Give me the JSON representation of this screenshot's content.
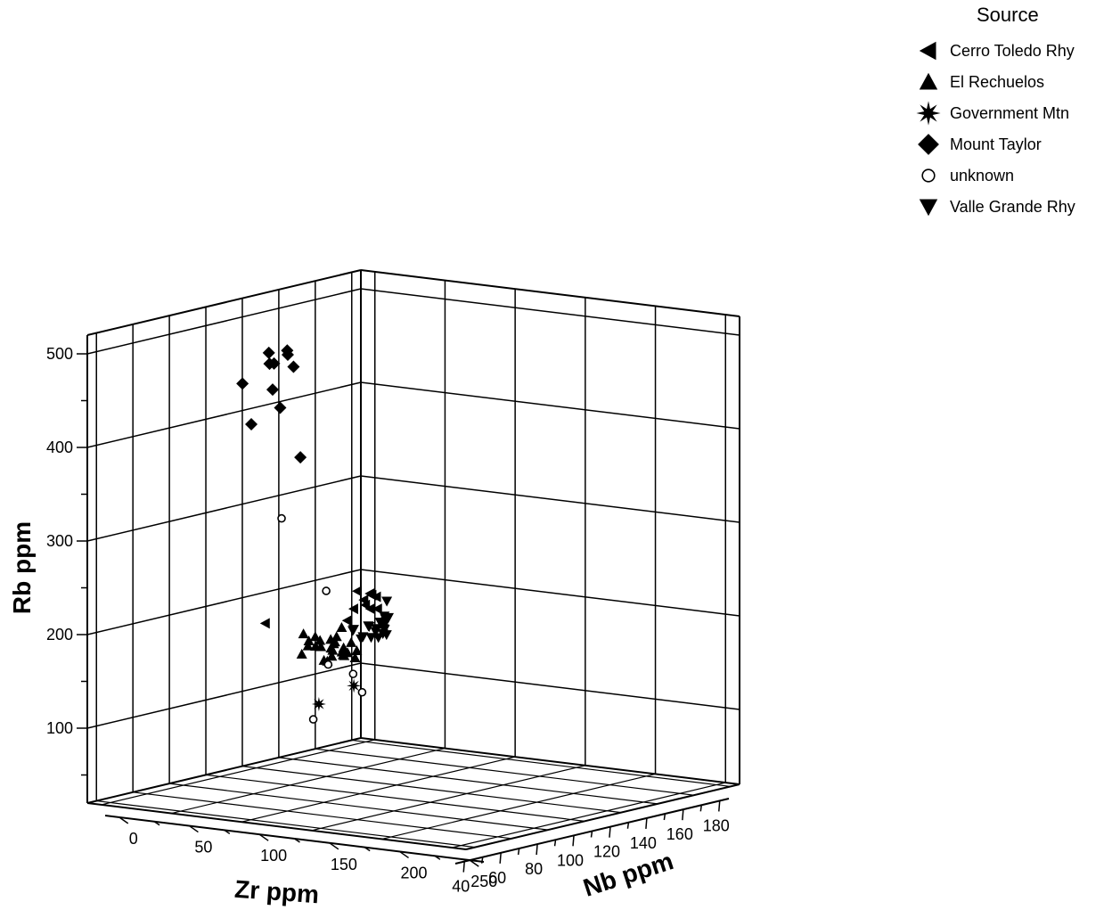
{
  "chart_data": {
    "type": "scatter3d",
    "title": "",
    "x_axis": {
      "label": "Zr ppm",
      "range": [
        35,
        185
      ],
      "ticks": [
        40,
        60,
        80,
        100,
        120,
        140,
        160,
        180
      ]
    },
    "y_axis": {
      "label": "Nb ppm",
      "range": [
        -10,
        260
      ],
      "ticks": [
        0,
        50,
        100,
        150,
        200,
        250
      ]
    },
    "z_axis": {
      "label": "Rb ppm",
      "range": [
        20,
        520
      ],
      "ticks": [
        100,
        200,
        300,
        400,
        500
      ]
    },
    "grid": true,
    "legend": {
      "title": "Source",
      "position": "top-right",
      "entries": [
        {
          "name": "Cerro Toledo Rhy",
          "marker": "triangle-left"
        },
        {
          "name": "El Rechuelos",
          "marker": "triangle-up"
        },
        {
          "name": "Government Mtn",
          "marker": "star"
        },
        {
          "name": "Mount Taylor",
          "marker": "diamond"
        },
        {
          "name": "unknown",
          "marker": "circle-open"
        },
        {
          "name": "Valle Grande Rhy",
          "marker": "triangle-down"
        }
      ]
    },
    "series": [
      {
        "name": "Mount Taylor",
        "marker": "diamond",
        "points": [
          [
            97,
            20,
            445
          ],
          [
            110,
            30,
            415
          ],
          [
            112,
            22,
            432
          ],
          [
            113,
            18,
            470
          ],
          [
            120,
            22,
            470
          ],
          [
            125,
            20,
            450
          ],
          [
            118,
            12,
            455
          ],
          [
            122,
            10,
            453
          ],
          [
            108,
            12,
            395
          ],
          [
            128,
            12,
            460
          ],
          [
            138,
            8,
            345
          ]
        ]
      },
      {
        "name": "El Rechuelos",
        "marker": "triangle-up",
        "points": [
          [
            108,
            48,
            156
          ],
          [
            112,
            44,
            175
          ],
          [
            114,
            50,
            162
          ],
          [
            118,
            40,
            164
          ],
          [
            120,
            46,
            158
          ],
          [
            122,
            48,
            142
          ],
          [
            124,
            52,
            168
          ],
          [
            126,
            46,
            145
          ],
          [
            128,
            44,
            150
          ],
          [
            130,
            48,
            148
          ],
          [
            130,
            40,
            160
          ],
          [
            132,
            52,
            158
          ],
          [
            134,
            44,
            150
          ],
          [
            132,
            56,
            150
          ],
          [
            124,
            48,
            155
          ],
          [
            120,
            56,
            165
          ],
          [
            128,
            60,
            145
          ],
          [
            126,
            54,
            148
          ],
          [
            116,
            42,
            160
          ],
          [
            136,
            40,
            170
          ],
          [
            122,
            60,
            150
          ],
          [
            118,
            48,
            166
          ],
          [
            124,
            50,
            160
          ],
          [
            130,
            52,
            148
          ],
          [
            114,
            56,
            148
          ],
          [
            120,
            42,
            168
          ]
        ]
      },
      {
        "name": "Government Mtn",
        "marker": "star",
        "points": [
          [
            112,
            55,
            102
          ],
          [
            135,
            50,
            110
          ]
        ]
      },
      {
        "name": "unknown",
        "marker": "circle-open",
        "points": [
          [
            80,
            70,
            318
          ],
          [
            82,
            90,
            106
          ],
          [
            138,
            52,
            102
          ],
          [
            144,
            20,
            123
          ],
          [
            146,
            16,
            200
          ],
          [
            150,
            30,
            112
          ]
        ]
      },
      {
        "name": "Cerro Toledo Rhy",
        "marker": "triangle-left",
        "points": [
          [
            128,
            -4,
            170
          ],
          [
            180,
            -6,
            180
          ],
          [
            182,
            -4,
            170
          ],
          [
            188,
            -6,
            172
          ],
          [
            186,
            -8,
            162
          ],
          [
            184,
            -2,
            160
          ],
          [
            190,
            -10,
            172
          ],
          [
            192,
            -8,
            168
          ],
          [
            178,
            -6,
            162
          ],
          [
            176,
            -8,
            150
          ],
          [
            188,
            -2,
            158
          ]
        ]
      },
      {
        "name": "Valle Grande Rhy",
        "marker": "triangle-down",
        "points": [
          [
            176,
            -4,
            140
          ],
          [
            178,
            -6,
            140
          ],
          [
            180,
            -2,
            132
          ],
          [
            182,
            -6,
            128
          ],
          [
            186,
            -6,
            140
          ],
          [
            188,
            -8,
            138
          ],
          [
            190,
            -6,
            132
          ],
          [
            192,
            -8,
            134
          ],
          [
            194,
            -8,
            140
          ],
          [
            196,
            -8,
            132
          ],
          [
            196,
            -10,
            138
          ],
          [
            198,
            -12,
            136
          ],
          [
            200,
            -12,
            140
          ],
          [
            200,
            -14,
            132
          ],
          [
            202,
            -14,
            136
          ],
          [
            204,
            -18,
            140
          ],
          [
            210,
            -24,
            152
          ],
          [
            214,
            -28,
            132
          ],
          [
            186,
            -4,
            128
          ],
          [
            190,
            -4,
            126
          ],
          [
            194,
            -6,
            128
          ],
          [
            198,
            -10,
            130
          ],
          [
            196,
            -6,
            126
          ]
        ]
      }
    ]
  }
}
